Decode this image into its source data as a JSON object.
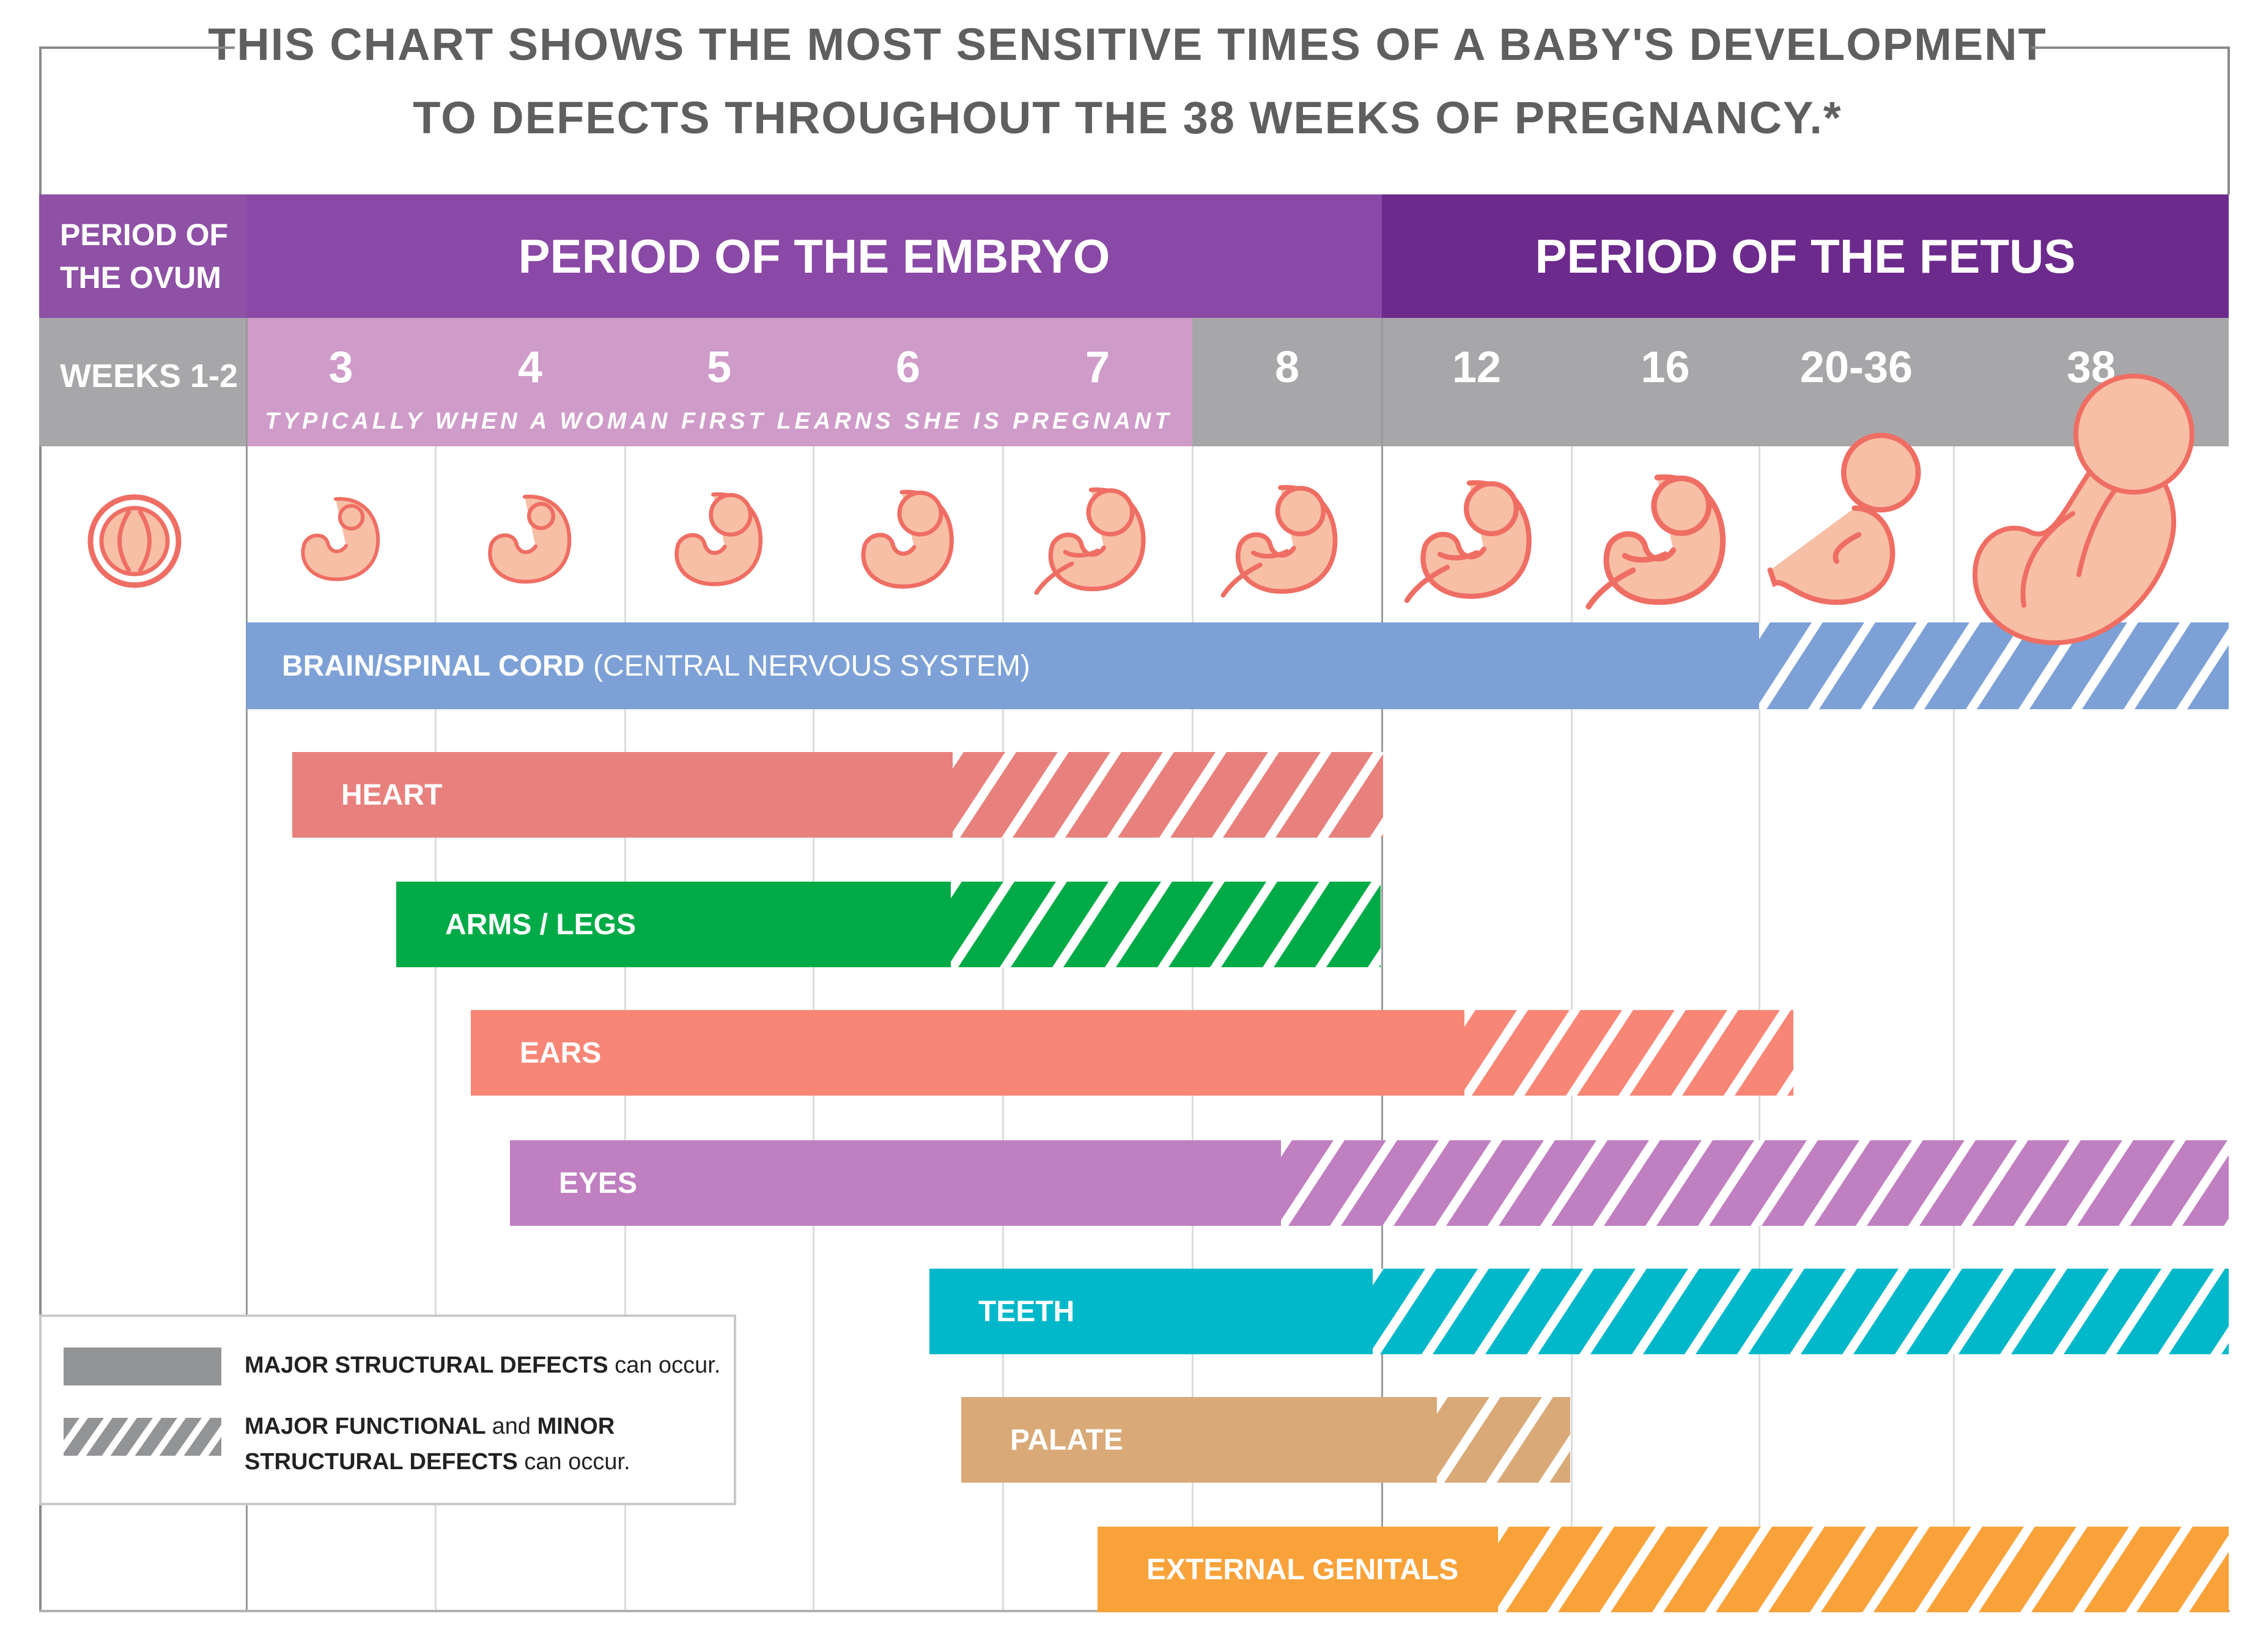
{
  "title": {
    "line1": "THIS CHART SHOWS THE MOST SENSITIVE TIMES OF A BABY'S DEVELOPMENT",
    "line2": "TO DEFECTS THROUGHOUT THE 38 WEEKS OF PREGNANCY.*"
  },
  "periods": {
    "ovum": "PERIOD OF THE OVUM",
    "ovum_line1": "PERIOD OF",
    "ovum_line2": "THE OVUM",
    "embryo": "PERIOD OF THE EMBRYO",
    "fetus": "PERIOD OF THE FETUS"
  },
  "weeks": {
    "ovum_label": "WEEKS 1-2",
    "columns": [
      "3",
      "4",
      "5",
      "6",
      "7",
      "8",
      "12",
      "16",
      "20-36",
      "38"
    ],
    "note": "TYPICALLY WHEN A WOMAN FIRST LEARNS SHE IS PREGNANT"
  },
  "colors": {
    "week_pink": "#cf9bc9",
    "week_gray": "#a7a7aa",
    "embryo_figure": "#f7bfa6",
    "embryo_outline": "#ef6e64"
  },
  "organs": [
    {
      "name": "BRAIN/SPINAL CORD",
      "sub": "(CENTRAL NERVOUS SYSTEM)",
      "color": "#7da1d6",
      "major_start": "3",
      "major_end": "20-36",
      "hatched_end": "38"
    },
    {
      "name": "HEART",
      "color": "#e8817d",
      "major_start": "3",
      "major_end": "7",
      "hatched_end": "8"
    },
    {
      "name": "ARMS / LEGS",
      "color": "#00ab47",
      "major_start": "4",
      "major_end": "7",
      "hatched_end": "8"
    },
    {
      "name": "EARS",
      "color": "#f88676",
      "major_start": "4",
      "major_end": "12",
      "hatched_end": "20-36"
    },
    {
      "name": "EYES",
      "color": "#c07fc0",
      "major_start": "4",
      "major_end": "8",
      "hatched_end": "38"
    },
    {
      "name": "TEETH",
      "color": "#00b8c9",
      "major_start": "6",
      "major_end": "8",
      "hatched_end": "38"
    },
    {
      "name": "PALATE",
      "color": "#d9aa78",
      "major_start": "6",
      "major_end": "12",
      "hatched_end": "12"
    },
    {
      "name": "EXTERNAL GENITALS",
      "color": "#f9a23a",
      "major_start": "7",
      "major_end": "12",
      "hatched_end": "38"
    }
  ],
  "legend": {
    "solid_bold": "MAJOR STRUCTURAL DEFECTS",
    "solid_rest": "can occur.",
    "hatched_bold_1": "MAJOR FUNCTIONAL",
    "hatched_and": "and",
    "hatched_bold_2": "MINOR",
    "hatched_line2_bold": "STRUCTURAL DEFECTS",
    "hatched_line2_rest": "can occur.",
    "swatch_color": "#939496"
  }
}
